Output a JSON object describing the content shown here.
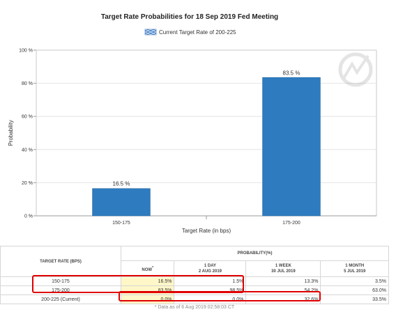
{
  "chart_data": {
    "type": "bar",
    "title": "Target Rate Probabilities for 18 Sep 2019 Fed Meeting",
    "legend": {
      "label": "Current Target Rate of 200-225",
      "placement": "top-center"
    },
    "xlabel": "Target Rate (in bps)",
    "ylabel": "Probability",
    "categories": [
      "150-175",
      "175-200"
    ],
    "values": [
      16.5,
      83.5
    ],
    "data_labels": [
      "16.5 %",
      "83.5 %"
    ],
    "ylim": [
      0,
      100
    ],
    "yticks": [
      0,
      20,
      40,
      60,
      80,
      100
    ],
    "ytick_labels": [
      "0 %",
      "20 %",
      "40 %",
      "60 %",
      "80 %",
      "100 %"
    ],
    "grid": true,
    "colors": {
      "bar": "#2e7bbf",
      "legend_swatch": "#5a8fd0"
    }
  },
  "table": {
    "col_header_target": "TARGET RATE (BPS)",
    "col_header_probability": "PROBABILITY(%)",
    "sub_headers": [
      {
        "line1": "NOW",
        "sup": "*",
        "line2": ""
      },
      {
        "line1": "1 DAY",
        "sup": "",
        "line2": "2 AUG 2019"
      },
      {
        "line1": "1 WEEK",
        "sup": "",
        "line2": "30 JUL 2019"
      },
      {
        "line1": "1 MONTH",
        "sup": "",
        "line2": "5 JUL 2019"
      }
    ],
    "rows": [
      {
        "rate": "150-175",
        "values": [
          "16.5%",
          "1.5%",
          "13.3%",
          "3.5%"
        ]
      },
      {
        "rate": "175-200",
        "values": [
          "83.5%",
          "98.5%",
          "54.2%",
          "63.0%"
        ]
      },
      {
        "rate": "200-225 (Current)",
        "values": [
          "0.0%",
          "0.0%",
          "32.6%",
          "33.5%"
        ]
      }
    ],
    "footnote": "* Data as of 6 Aug 2019 02:58:03 CT"
  },
  "annotations": {
    "highlight_color": "#e00000"
  }
}
